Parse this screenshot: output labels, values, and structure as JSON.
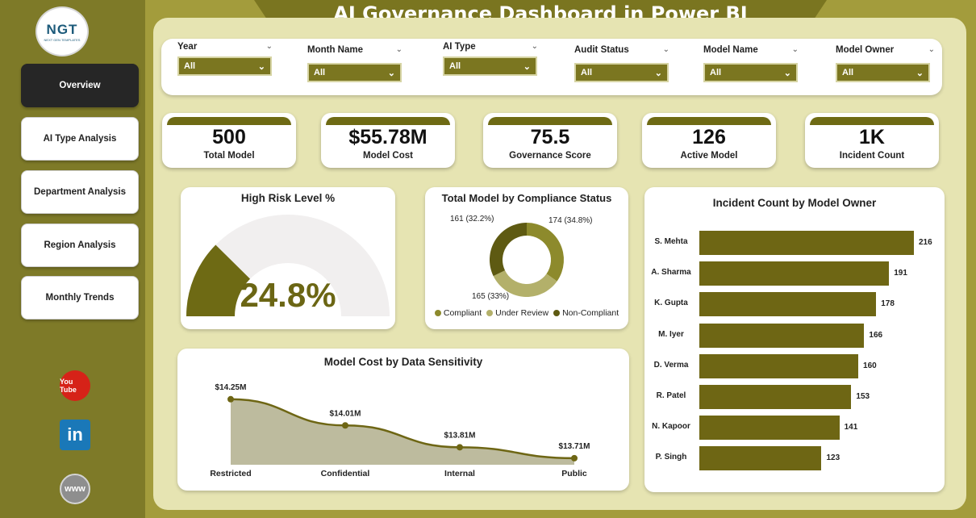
{
  "title": "AI Governance Dashboard in Power BI",
  "logo": {
    "text": "NGT",
    "sub": "NEXT GEN TEMPLATES"
  },
  "nav": [
    {
      "label": "Overview",
      "active": true
    },
    {
      "label": "AI Type Analysis",
      "active": false
    },
    {
      "label": "Department Analysis",
      "active": false
    },
    {
      "label": "Region Analysis",
      "active": false
    },
    {
      "label": "Monthly Trends",
      "active": false
    }
  ],
  "social": {
    "youtube": "You Tube",
    "linkedin": "in",
    "web": "www"
  },
  "filters": [
    {
      "label": "Year",
      "value": "All"
    },
    {
      "label": "Month Name",
      "value": "All"
    },
    {
      "label": "AI Type",
      "value": "All"
    },
    {
      "label": "Audit Status",
      "value": "All"
    },
    {
      "label": "Model Name",
      "value": "All"
    },
    {
      "label": "Model Owner",
      "value": "All"
    }
  ],
  "kpis": [
    {
      "value": "500",
      "label": "Total Model"
    },
    {
      "value": "$55.78M",
      "label": "Model Cost"
    },
    {
      "value": "75.5",
      "label": "Governance Score"
    },
    {
      "value": "126",
      "label": "Active Model"
    },
    {
      "value": "1K",
      "label": "Incident Count"
    }
  ],
  "gauge": {
    "title": "High Risk Level %",
    "value_text": "24.8%",
    "value": 24.8,
    "max": 100,
    "fill_color": "#6e6a14",
    "track_color": "#f1efef"
  },
  "donut": {
    "title": "Total Model by Compliance Status",
    "slices": [
      {
        "name": "Compliant",
        "value": 174,
        "label": "174 (34.8%)",
        "color": "#8d8a2c"
      },
      {
        "name": "Under Review",
        "value": 165,
        "label": "165 (33%)",
        "color": "#b3b06a"
      },
      {
        "name": "Non-Compliant",
        "value": 161,
        "label": "161 (32.2%)",
        "color": "#5e5a12"
      }
    ]
  },
  "incidents": {
    "title": "Incident Count by Model Owner",
    "max": 216,
    "rows": [
      {
        "name": "S. Mehta",
        "value": 216
      },
      {
        "name": "A. Sharma",
        "value": 191
      },
      {
        "name": "K. Gupta",
        "value": 178
      },
      {
        "name": "M. Iyer",
        "value": 166
      },
      {
        "name": "D. Verma",
        "value": 160
      },
      {
        "name": "R. Patel",
        "value": 153
      },
      {
        "name": "N. Kapoor",
        "value": 141
      },
      {
        "name": "P. Singh",
        "value": 123
      }
    ]
  },
  "chart_data": {
    "type": "area",
    "title": "Model Cost by Data Sensitivity",
    "categories": [
      "Restricted",
      "Confidential",
      "Internal",
      "Public"
    ],
    "values": [
      14.25,
      14.01,
      13.81,
      13.71
    ],
    "labels": [
      "$14.25M",
      "$14.01M",
      "$13.81M",
      "$13.71M"
    ],
    "ylim": [
      13.65,
      14.3
    ],
    "color": "#6e6614",
    "fill": "#bdbb9e"
  }
}
